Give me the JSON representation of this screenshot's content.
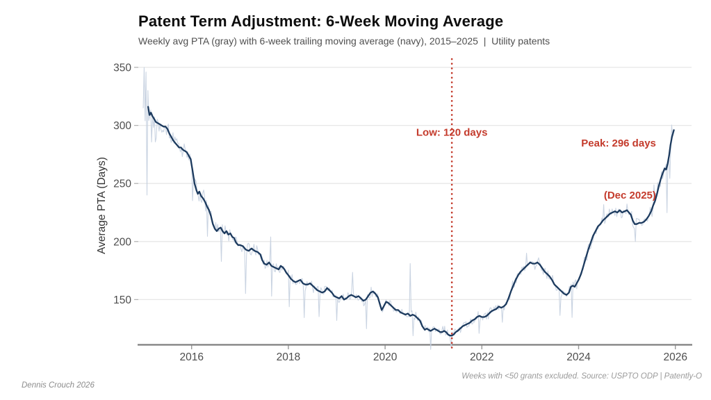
{
  "header": {
    "title": "Patent Term Adjustment: 6-Week Moving Average",
    "subtitle": "Weekly avg PTA (gray) with 6-week trailing moving average (navy), 2015–2025  |  Utility patents"
  },
  "footer": {
    "caption": "Weeks with <50 grants excluded. Source: USPTO ODP | Patently-O",
    "credit": "Dennis Crouch 2026"
  },
  "colors": {
    "navy": "#1c3a5e",
    "weekly_gray": "#c4cfdf",
    "accent_red": "#c43b2c",
    "gridline": "#e7e7e7",
    "axis_line": "#7d7d7d",
    "tick_label": "#4d4d4d"
  },
  "chart_data": {
    "type": "line",
    "title": "Patent Term Adjustment: 6-Week Moving Average",
    "x_axis": {
      "ticks": [
        2016,
        2018,
        2020,
        2022,
        2024,
        2026
      ],
      "range": [
        2014.9,
        2026.35
      ],
      "grid": false
    },
    "y_axis": {
      "title": "Average PTA (Days)",
      "ticks": [
        150,
        200,
        250,
        300,
        350
      ],
      "range": [
        110,
        357
      ],
      "grid": true
    },
    "legend": "none",
    "series": [
      {
        "name": "6-week trailing moving average",
        "color": "#1c3a5e",
        "points": [
          [
            2015.1,
            316
          ],
          [
            2015.13,
            309
          ],
          [
            2015.16,
            311
          ],
          [
            2015.19,
            308
          ],
          [
            2015.22,
            306
          ],
          [
            2015.26,
            303
          ],
          [
            2015.3,
            302
          ],
          [
            2015.34,
            301
          ],
          [
            2015.38,
            300
          ],
          [
            2015.42,
            299
          ],
          [
            2015.46,
            299
          ],
          [
            2015.5,
            297
          ],
          [
            2015.54,
            293
          ],
          [
            2015.58,
            290
          ],
          [
            2015.62,
            287
          ],
          [
            2015.66,
            285
          ],
          [
            2015.7,
            283
          ],
          [
            2015.74,
            281
          ],
          [
            2015.78,
            281
          ],
          [
            2015.82,
            279
          ],
          [
            2015.86,
            278
          ],
          [
            2015.9,
            277
          ],
          [
            2015.94,
            274
          ],
          [
            2015.98,
            271
          ],
          [
            2016.02,
            261
          ],
          [
            2016.06,
            250
          ],
          [
            2016.1,
            244
          ],
          [
            2016.13,
            241
          ],
          [
            2016.16,
            243
          ],
          [
            2016.2,
            239
          ],
          [
            2016.24,
            237
          ],
          [
            2016.28,
            234
          ],
          [
            2016.32,
            230
          ],
          [
            2016.36,
            227
          ],
          [
            2016.4,
            222
          ],
          [
            2016.44,
            215
          ],
          [
            2016.48,
            211
          ],
          [
            2016.52,
            209
          ],
          [
            2016.56,
            211
          ],
          [
            2016.6,
            212
          ],
          [
            2016.64,
            209
          ],
          [
            2016.68,
            207
          ],
          [
            2016.72,
            209
          ],
          [
            2016.76,
            206
          ],
          [
            2016.8,
            207
          ],
          [
            2016.84,
            204
          ],
          [
            2016.88,
            203
          ],
          [
            2016.92,
            199
          ],
          [
            2016.96,
            197
          ],
          [
            2017.0,
            197
          ],
          [
            2017.06,
            196
          ],
          [
            2017.12,
            193
          ],
          [
            2017.18,
            192
          ],
          [
            2017.24,
            194
          ],
          [
            2017.3,
            192
          ],
          [
            2017.36,
            191
          ],
          [
            2017.42,
            189
          ],
          [
            2017.46,
            184
          ],
          [
            2017.5,
            181
          ],
          [
            2017.55,
            180
          ],
          [
            2017.6,
            182
          ],
          [
            2017.65,
            179
          ],
          [
            2017.7,
            178
          ],
          [
            2017.75,
            177
          ],
          [
            2017.8,
            176
          ],
          [
            2017.84,
            179
          ],
          [
            2017.88,
            178
          ],
          [
            2017.92,
            176
          ],
          [
            2017.96,
            173
          ],
          [
            2018.0,
            171
          ],
          [
            2018.05,
            168
          ],
          [
            2018.1,
            166
          ],
          [
            2018.15,
            165
          ],
          [
            2018.2,
            166
          ],
          [
            2018.25,
            167
          ],
          [
            2018.3,
            164
          ],
          [
            2018.35,
            163
          ],
          [
            2018.4,
            163
          ],
          [
            2018.45,
            164
          ],
          [
            2018.5,
            162
          ],
          [
            2018.55,
            160
          ],
          [
            2018.6,
            158
          ],
          [
            2018.65,
            157
          ],
          [
            2018.7,
            156
          ],
          [
            2018.75,
            157
          ],
          [
            2018.8,
            160
          ],
          [
            2018.85,
            158
          ],
          [
            2018.9,
            156
          ],
          [
            2018.95,
            153
          ],
          [
            2019.0,
            152
          ],
          [
            2019.05,
            151
          ],
          [
            2019.1,
            153
          ],
          [
            2019.15,
            150
          ],
          [
            2019.2,
            151
          ],
          [
            2019.25,
            153
          ],
          [
            2019.3,
            154
          ],
          [
            2019.35,
            153
          ],
          [
            2019.4,
            152
          ],
          [
            2019.45,
            153
          ],
          [
            2019.5,
            151
          ],
          [
            2019.55,
            149
          ],
          [
            2019.6,
            150
          ],
          [
            2019.65,
            153
          ],
          [
            2019.7,
            156
          ],
          [
            2019.75,
            157
          ],
          [
            2019.8,
            155
          ],
          [
            2019.85,
            152
          ],
          [
            2019.9,
            145
          ],
          [
            2019.93,
            141
          ],
          [
            2019.97,
            144
          ],
          [
            2020.02,
            148
          ],
          [
            2020.07,
            147
          ],
          [
            2020.12,
            145
          ],
          [
            2020.17,
            143
          ],
          [
            2020.22,
            141
          ],
          [
            2020.27,
            141
          ],
          [
            2020.32,
            139
          ],
          [
            2020.37,
            138
          ],
          [
            2020.42,
            137
          ],
          [
            2020.47,
            138
          ],
          [
            2020.52,
            136
          ],
          [
            2020.57,
            137
          ],
          [
            2020.62,
            136
          ],
          [
            2020.67,
            134
          ],
          [
            2020.72,
            132
          ],
          [
            2020.77,
            127
          ],
          [
            2020.82,
            124
          ],
          [
            2020.86,
            125
          ],
          [
            2020.9,
            124
          ],
          [
            2020.94,
            123
          ],
          [
            2020.98,
            124
          ],
          [
            2021.02,
            125
          ],
          [
            2021.06,
            124
          ],
          [
            2021.1,
            123
          ],
          [
            2021.14,
            122
          ],
          [
            2021.18,
            122
          ],
          [
            2021.22,
            123
          ],
          [
            2021.26,
            122
          ],
          [
            2021.3,
            120
          ],
          [
            2021.34,
            119
          ],
          [
            2021.38,
            119
          ],
          [
            2021.42,
            120
          ],
          [
            2021.46,
            122
          ],
          [
            2021.5,
            123
          ],
          [
            2021.55,
            125
          ],
          [
            2021.6,
            127
          ],
          [
            2021.65,
            128
          ],
          [
            2021.7,
            129
          ],
          [
            2021.75,
            130
          ],
          [
            2021.8,
            132
          ],
          [
            2021.85,
            133
          ],
          [
            2021.9,
            135
          ],
          [
            2021.95,
            136
          ],
          [
            2022.0,
            135
          ],
          [
            2022.05,
            135
          ],
          [
            2022.1,
            136
          ],
          [
            2022.15,
            138
          ],
          [
            2022.2,
            140
          ],
          [
            2022.25,
            141
          ],
          [
            2022.3,
            142
          ],
          [
            2022.35,
            144
          ],
          [
            2022.4,
            143
          ],
          [
            2022.45,
            144
          ],
          [
            2022.5,
            146
          ],
          [
            2022.55,
            151
          ],
          [
            2022.6,
            157
          ],
          [
            2022.65,
            162
          ],
          [
            2022.7,
            167
          ],
          [
            2022.75,
            171
          ],
          [
            2022.8,
            174
          ],
          [
            2022.85,
            176
          ],
          [
            2022.9,
            178
          ],
          [
            2022.95,
            180
          ],
          [
            2023.0,
            182
          ],
          [
            2023.05,
            181
          ],
          [
            2023.1,
            181
          ],
          [
            2023.15,
            182
          ],
          [
            2023.2,
            180
          ],
          [
            2023.25,
            177
          ],
          [
            2023.3,
            174
          ],
          [
            2023.35,
            172
          ],
          [
            2023.4,
            170
          ],
          [
            2023.45,
            167
          ],
          [
            2023.5,
            163
          ],
          [
            2023.55,
            161
          ],
          [
            2023.6,
            159
          ],
          [
            2023.65,
            157
          ],
          [
            2023.7,
            155
          ],
          [
            2023.75,
            154
          ],
          [
            2023.8,
            156
          ],
          [
            2023.84,
            161
          ],
          [
            2023.88,
            162
          ],
          [
            2023.92,
            161
          ],
          [
            2023.96,
            164
          ],
          [
            2024.0,
            167
          ],
          [
            2024.05,
            172
          ],
          [
            2024.1,
            179
          ],
          [
            2024.15,
            186
          ],
          [
            2024.2,
            193
          ],
          [
            2024.25,
            199
          ],
          [
            2024.3,
            205
          ],
          [
            2024.35,
            209
          ],
          [
            2024.4,
            213
          ],
          [
            2024.45,
            215
          ],
          [
            2024.5,
            218
          ],
          [
            2024.55,
            220
          ],
          [
            2024.6,
            222
          ],
          [
            2024.65,
            224
          ],
          [
            2024.7,
            225
          ],
          [
            2024.75,
            226
          ],
          [
            2024.8,
            225
          ],
          [
            2024.85,
            227
          ],
          [
            2024.9,
            225
          ],
          [
            2024.95,
            226
          ],
          [
            2025.0,
            227
          ],
          [
            2025.04,
            225
          ],
          [
            2025.08,
            223
          ],
          [
            2025.12,
            218
          ],
          [
            2025.16,
            215
          ],
          [
            2025.2,
            215
          ],
          [
            2025.25,
            216
          ],
          [
            2025.3,
            216
          ],
          [
            2025.35,
            217
          ],
          [
            2025.4,
            219
          ],
          [
            2025.45,
            222
          ],
          [
            2025.5,
            226
          ],
          [
            2025.54,
            231
          ],
          [
            2025.58,
            235
          ],
          [
            2025.62,
            241
          ],
          [
            2025.66,
            248
          ],
          [
            2025.7,
            254
          ],
          [
            2025.74,
            259
          ],
          [
            2025.78,
            263
          ],
          [
            2025.81,
            262
          ],
          [
            2025.84,
            267
          ],
          [
            2025.87,
            274
          ],
          [
            2025.9,
            283
          ],
          [
            2025.93,
            290
          ],
          [
            2025.95,
            293
          ],
          [
            2025.97,
            296
          ]
        ]
      },
      {
        "name": "weekly average PTA",
        "color": "#c4cfdf",
        "derived_from": "6-week trailing moving average",
        "start": 2015.0,
        "end": 2025.97,
        "step": 0.019231,
        "seed": 13,
        "noise_bands": [
          {
            "to": 2015.35,
            "amp": 15
          },
          {
            "to": 2016.05,
            "amp": 8
          },
          {
            "to": 2016.6,
            "amp": 9
          },
          {
            "to": 2017.3,
            "amp": 7
          },
          {
            "to": 2019.6,
            "amp": 6
          },
          {
            "to": 2021.6,
            "amp": 5
          },
          {
            "to": 2023.2,
            "amp": 6
          },
          {
            "to": 2024.4,
            "amp": 6
          },
          {
            "to": 2025.45,
            "amp": 6
          },
          {
            "to": 2026.0,
            "amp": 8
          }
        ],
        "spikes": [
          [
            2015.02,
            34
          ],
          [
            2015.04,
            -12
          ],
          [
            2015.06,
            30
          ],
          [
            2015.08,
            -76
          ],
          [
            2015.1,
            14
          ],
          [
            2015.17,
            -24
          ],
          [
            2015.25,
            -18
          ],
          [
            2016.02,
            -26
          ],
          [
            2016.33,
            -25
          ],
          [
            2016.61,
            -28
          ],
          [
            2017.12,
            -38
          ],
          [
            2017.63,
            24
          ],
          [
            2017.66,
            -26
          ],
          [
            2018.02,
            -26
          ],
          [
            2018.33,
            -29
          ],
          [
            2018.63,
            -22
          ],
          [
            2019.0,
            -20
          ],
          [
            2019.32,
            20
          ],
          [
            2019.62,
            -26
          ],
          [
            2020.52,
            45
          ],
          [
            2020.57,
            -18
          ],
          [
            2020.95,
            -16
          ],
          [
            2021.36,
            -10
          ],
          [
            2021.95,
            -15
          ],
          [
            2022.42,
            -13
          ],
          [
            2022.92,
            11
          ],
          [
            2023.62,
            -22
          ],
          [
            2023.86,
            -27
          ],
          [
            2024.52,
            13
          ],
          [
            2025.18,
            -15
          ],
          [
            2025.55,
            16
          ],
          [
            2025.82,
            -40
          ],
          [
            2025.88,
            -24
          ],
          [
            2025.93,
            12
          ]
        ]
      }
    ],
    "annotations": {
      "vline": {
        "x_year": 2021.38,
        "style": "dotted",
        "color": "#c43b2c"
      },
      "low_label": {
        "text": "Low: 120 days",
        "x_year": 2021.38,
        "y_days": 294
      },
      "peak_label": {
        "line1": "Peak: 296 days",
        "line2": "(Dec 2025)",
        "x_year": 2025.6,
        "y_days": 315
      }
    }
  }
}
